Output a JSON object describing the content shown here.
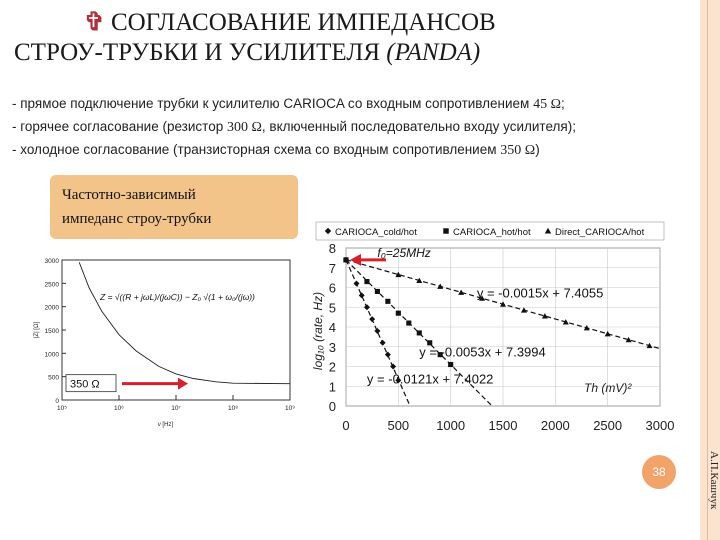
{
  "slide": {
    "title_line1": "СОГЛАСОВАНИЕ ИМПЕДАНСОВ",
    "title_line2_main": "СТРОУ-ТРУБКИ И УСИЛИТЕЛЯ",
    "title_line2_italic": "(PANDA)",
    "title_icon": "cross-icon",
    "accent_color": "#b0303a",
    "box_color": "#f3c48a",
    "page_number": "38",
    "author": "А.П.Кашчук"
  },
  "bullets": [
    {
      "text": "- прямое подключение трубки к усилителю CARIOCA со входным сопротивлением",
      "value": "45 Ω",
      "suffix": ";"
    },
    {
      "text": "- горячее согласование (резистор",
      "value": "300 Ω",
      "suffix": ", включенный последовательно входу усилителя);"
    },
    {
      "text": "- холодное согласование (транзисторная схема со входным сопротивлением",
      "value": "350 Ω",
      "suffix": ")"
    }
  ],
  "freq_box": {
    "line1": "Частотно-зависимый",
    "line2": "импеданс строу-трубки"
  },
  "chart_data": [
    {
      "type": "line",
      "xlabel": "ν [Hz]",
      "ylabel": "|Z| [Ω]",
      "x_scale": "log",
      "xlim": [
        100000,
        1000000000
      ],
      "ylim": [
        0,
        3000
      ],
      "x_ticks": [
        "10⁵",
        "10⁶",
        "10⁷",
        "10⁸",
        "10⁹"
      ],
      "y_ticks": [
        "0",
        "500",
        "1000",
        "1500",
        "2000",
        "2500",
        "3000"
      ],
      "annotation": "350 Ω",
      "formula": "Z = √((R + jωL)/(jωC)) − Z₀ √(1 + ω₀/(jω))",
      "x": [
        200000,
        300000,
        500000,
        1000000,
        2000000,
        5000000,
        10000000,
        20000000,
        50000000,
        100000000,
        1000000000
      ],
      "values": [
        2950,
        2400,
        1900,
        1400,
        1050,
        720,
        560,
        460,
        390,
        360,
        350
      ]
    },
    {
      "type": "scatter",
      "xlabel": "Th (mV)²",
      "ylabel": "log₁₀ (rate, Hz)",
      "xlim": [
        0,
        3000
      ],
      "ylim": [
        0,
        8
      ],
      "x_ticks": [
        "0",
        "500",
        "1000",
        "1500",
        "2000",
        "2500",
        "3000"
      ],
      "y_ticks": [
        "0",
        "1",
        "2",
        "3",
        "4",
        "5",
        "6",
        "7",
        "8"
      ],
      "legend": [
        "CARIOCA_cold/hot",
        "CARIOCA_hot/hot",
        "Direct_CARIOCA/hot"
      ],
      "legend_placement": "top",
      "f0_label": "f₀=25MHz",
      "grid": true,
      "series": [
        {
          "name": "CARIOCA_cold/hot",
          "marker": "diamond",
          "slope": -0.0121,
          "intercept": 7.4022,
          "fit_label": "y = -0.0121x + 7.4022",
          "x": [
            0,
            100,
            150,
            200,
            250,
            300,
            350,
            400,
            450,
            500
          ],
          "y": [
            7.4,
            6.2,
            5.6,
            5.0,
            4.4,
            3.8,
            3.2,
            2.6,
            2.0,
            1.3
          ]
        },
        {
          "name": "CARIOCA_hot/hot",
          "marker": "square",
          "slope": -0.0053,
          "intercept": 7.3994,
          "fit_label": "y = -0.0053x + 7.3994",
          "x": [
            0,
            200,
            300,
            400,
            500,
            600,
            700,
            800,
            900,
            1000
          ],
          "y": [
            7.4,
            6.3,
            5.8,
            5.3,
            4.7,
            4.2,
            3.7,
            3.2,
            2.6,
            2.1
          ]
        },
        {
          "name": "Direct_CARIOCA/hot",
          "marker": "triangle",
          "slope": -0.0015,
          "intercept": 7.4055,
          "fit_label": "y = -0.0015x + 7.4055",
          "x": [
            0,
            500,
            700,
            900,
            1100,
            1300,
            1500,
            1700,
            1900,
            2100,
            2300,
            2500,
            2700,
            2900
          ],
          "y": [
            7.4,
            6.65,
            6.35,
            6.05,
            5.75,
            5.45,
            5.15,
            4.85,
            4.55,
            4.25,
            3.95,
            3.65,
            3.35,
            3.05
          ]
        }
      ]
    }
  ]
}
